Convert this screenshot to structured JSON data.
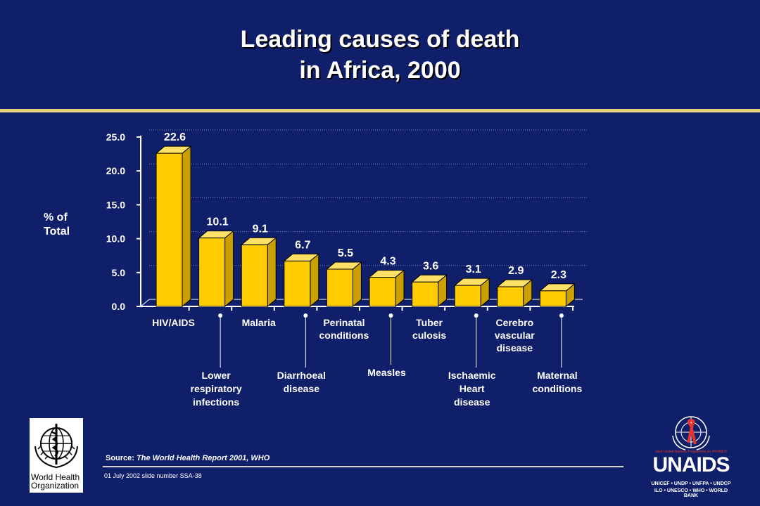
{
  "title_line1": "Leading causes of death",
  "title_line2": "in Africa, 2000",
  "ylabel_line1": "% of",
  "ylabel_line2": "Total",
  "source_prefix": "Source:",
  "source_text": "The World Health Report 2001, WHO",
  "footer": "01 July 2002 slide number SSA-38",
  "who_logo_text": "World Health Organization",
  "unaids_logo": {
    "name": "UNAIDS",
    "tagline": "Joint United Nations Programme on HIV/AIDS",
    "sponsors_1": "UNICEF • UNDP • UNFPA • UNDCP",
    "sponsors_2": "ILO • UNESCO • WHO • WORLD BANK"
  },
  "colors": {
    "background": "#0f1f6a",
    "bar": "#ffcc00",
    "bar_side": "#c9a000",
    "rule": "#e8d27a"
  },
  "chart_data": {
    "type": "bar",
    "categories": [
      "HIV/AIDS",
      "Lower respiratory infections",
      "Malaria",
      "Diarrhoeal disease",
      "Perinatal conditions",
      "Measles",
      "Tuber culosis",
      "Ischaemic Heart disease",
      "Cerebro vascular disease",
      "Maternal conditions"
    ],
    "category_lines": [
      [
        "HIV/AIDS"
      ],
      [
        "Lower",
        "respiratory",
        "infections"
      ],
      [
        "Malaria"
      ],
      [
        "Diarrhoeal",
        "disease"
      ],
      [
        "Perinatal",
        "conditions"
      ],
      [
        "Measles"
      ],
      [
        "Tuber",
        "culosis"
      ],
      [
        "Ischaemic",
        "Heart",
        "disease"
      ],
      [
        "Cerebro",
        "vascular",
        "disease"
      ],
      [
        "Maternal",
        "conditions"
      ]
    ],
    "values": [
      22.6,
      10.1,
      9.1,
      6.7,
      5.5,
      4.3,
      3.6,
      3.1,
      2.9,
      2.3
    ],
    "value_labels": [
      "22.6",
      "10.1",
      "9.1",
      "6.7",
      "5.5",
      "4.3",
      "3.6",
      "3.1",
      "2.9",
      "2.3"
    ],
    "yticks": [
      "0.0",
      "5.0",
      "10.0",
      "15.0",
      "20.0",
      "25.0"
    ],
    "ylim": [
      0,
      25
    ],
    "title": "Leading causes of death in Africa, 2000",
    "ylabel": "% of Total",
    "grid": true
  }
}
